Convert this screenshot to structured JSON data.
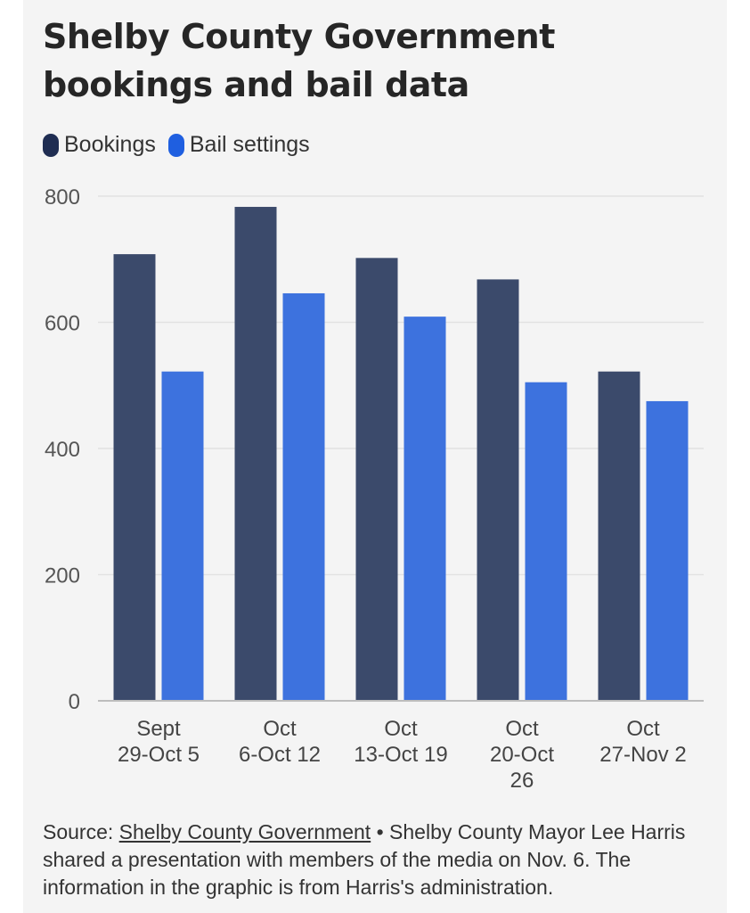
{
  "header": {
    "title": "Shelby County Government bookings and bail data"
  },
  "footer": {
    "source_label": "Source:",
    "source_link": "Shelby County Government",
    "source_note": "• Shelby County Mayor Lee Harris shared a presentation with members of the media on Nov. 6. The information in the graphic is from Harris's administration."
  },
  "colors": {
    "bookings": "#3b4a6b",
    "bail_settings": "#3d72de",
    "legend_bookings": "#1f2d52",
    "legend_bail": "#1f5fe0",
    "grid": "#e2e2e2",
    "axis": "#bdbdbd"
  },
  "chart_data": {
    "type": "bar",
    "title": "Shelby County Government bookings and bail data",
    "xlabel": "",
    "ylabel": "",
    "ylim": [
      0,
      800
    ],
    "yticks": [
      0,
      200,
      400,
      600,
      800
    ],
    "grid": true,
    "legend_position": "top-left",
    "categories": [
      [
        "Sept",
        "29-Oct 5"
      ],
      [
        "Oct",
        "6-Oct 12"
      ],
      [
        "Oct",
        "13-Oct 19"
      ],
      [
        "Oct",
        "20-Oct",
        "26"
      ],
      [
        "Oct",
        "27-Nov 2"
      ]
    ],
    "series": [
      {
        "name": "Bookings",
        "values": [
          708,
          783,
          702,
          668,
          522
        ]
      },
      {
        "name": "Bail settings",
        "values": [
          522,
          646,
          609,
          505,
          475
        ]
      }
    ]
  }
}
